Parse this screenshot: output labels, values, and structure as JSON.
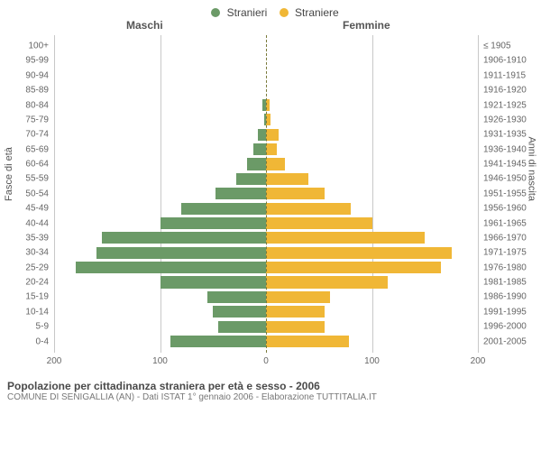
{
  "legend": {
    "male": {
      "label": "Stranieri",
      "color": "#6b9a67"
    },
    "female": {
      "label": "Straniere",
      "color": "#f0b736"
    }
  },
  "headers": {
    "male": "Maschi",
    "female": "Femmine"
  },
  "axes": {
    "left_title": "Fasce di età",
    "right_title": "Anni di nascita",
    "xmax": 200,
    "xtick_step": 100,
    "xticks_left": [
      200,
      100,
      0
    ],
    "xticks_right": [
      100,
      200
    ],
    "grid_color": "#c8c8c8",
    "center_dash_color": "#7a7a3a",
    "background_color": "#ffffff",
    "label_fontsize": 10
  },
  "chart": {
    "type": "population-pyramid",
    "half_width_units": 200,
    "rows": [
      {
        "age": "100+",
        "birth": "≤ 1905",
        "male": 0,
        "female": 0
      },
      {
        "age": "95-99",
        "birth": "1906-1910",
        "male": 0,
        "female": 0
      },
      {
        "age": "90-94",
        "birth": "1911-1915",
        "male": 0,
        "female": 0
      },
      {
        "age": "85-89",
        "birth": "1916-1920",
        "male": 0,
        "female": 0
      },
      {
        "age": "80-84",
        "birth": "1921-1925",
        "male": 3,
        "female": 3
      },
      {
        "age": "75-79",
        "birth": "1926-1930",
        "male": 2,
        "female": 4
      },
      {
        "age": "70-74",
        "birth": "1931-1935",
        "male": 8,
        "female": 12
      },
      {
        "age": "65-69",
        "birth": "1936-1940",
        "male": 12,
        "female": 10
      },
      {
        "age": "60-64",
        "birth": "1941-1945",
        "male": 18,
        "female": 18
      },
      {
        "age": "55-59",
        "birth": "1946-1950",
        "male": 28,
        "female": 40
      },
      {
        "age": "50-54",
        "birth": "1951-1955",
        "male": 48,
        "female": 55
      },
      {
        "age": "45-49",
        "birth": "1956-1960",
        "male": 80,
        "female": 80
      },
      {
        "age": "40-44",
        "birth": "1961-1965",
        "male": 100,
        "female": 100
      },
      {
        "age": "35-39",
        "birth": "1966-1970",
        "male": 155,
        "female": 150
      },
      {
        "age": "30-34",
        "birth": "1971-1975",
        "male": 160,
        "female": 175
      },
      {
        "age": "25-29",
        "birth": "1976-1980",
        "male": 180,
        "female": 165
      },
      {
        "age": "20-24",
        "birth": "1981-1985",
        "male": 100,
        "female": 115
      },
      {
        "age": "15-19",
        "birth": "1986-1990",
        "male": 55,
        "female": 60
      },
      {
        "age": "10-14",
        "birth": "1991-1995",
        "male": 50,
        "female": 55
      },
      {
        "age": "5-9",
        "birth": "1996-2000",
        "male": 45,
        "female": 55
      },
      {
        "age": "0-4",
        "birth": "2001-2005",
        "male": 90,
        "female": 78
      }
    ]
  },
  "footer": {
    "title": "Popolazione per cittadinanza straniera per età e sesso - 2006",
    "subtitle": "COMUNE DI SENIGALLIA (AN) - Dati ISTAT 1° gennaio 2006 - Elaborazione TUTTITALIA.IT"
  }
}
